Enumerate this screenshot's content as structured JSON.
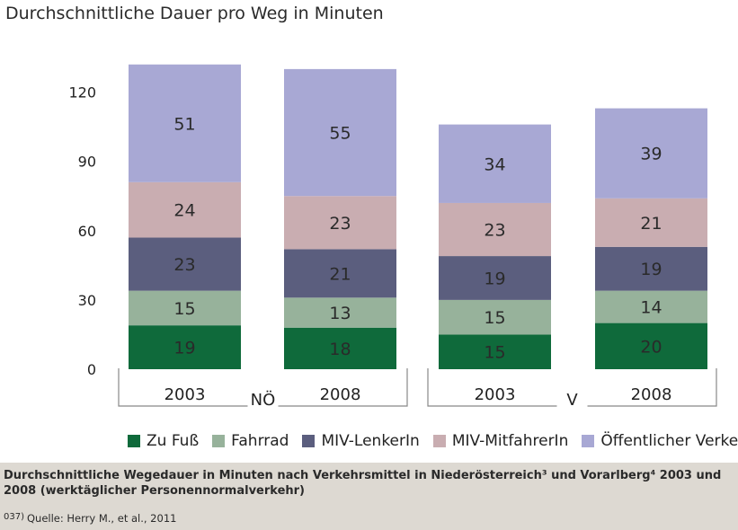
{
  "title": "Durchschnittliche Dauer pro Weg in Minuten",
  "colors": {
    "zu_fuss": "#0f6a3b",
    "fahrrad": "#97b29b",
    "miv_lenker": "#5b5e7e",
    "miv_mitfahrer": "#c9adb1",
    "oeffentlich": "#a8a8d4",
    "axis": "#888888"
  },
  "chart_data": {
    "type": "bar",
    "stacked": true,
    "title": "Durchschnittliche Dauer pro Weg in Minuten",
    "categories": [
      "2003",
      "2008",
      "2003",
      "2008"
    ],
    "groups": [
      {
        "label": "NÖ",
        "categories": [
          "2003",
          "2008"
        ]
      },
      {
        "label": "V",
        "categories": [
          "2003",
          "2008"
        ]
      }
    ],
    "series": [
      {
        "name": "Zu Fuß",
        "values": [
          19,
          18,
          15,
          20
        ],
        "labels": [
          "19",
          "18",
          "15",
          "20"
        ]
      },
      {
        "name": "Fahrrad",
        "values": [
          15,
          13,
          15,
          14
        ],
        "labels": [
          "15",
          "13",
          "15",
          "14"
        ]
      },
      {
        "name": "MIV-LenkerIn",
        "values": [
          23,
          21,
          19,
          19
        ],
        "labels": [
          "23",
          "21",
          "19",
          "19"
        ]
      },
      {
        "name": "MIV-MitfahrerIn",
        "values": [
          24,
          23,
          23,
          21
        ],
        "labels": [
          "24",
          "23",
          "23",
          "21"
        ]
      },
      {
        "name": "Öffentlicher Verkehr",
        "values": [
          51,
          55,
          34,
          39
        ],
        "labels": [
          "51",
          "55",
          "34",
          "39"
        ]
      }
    ],
    "yticks": [
      0,
      30,
      60,
      90,
      120
    ],
    "ytick_labels": [
      "0",
      "30",
      "60",
      "90",
      "120"
    ],
    "ylim": [
      0,
      140
    ],
    "legend_position": "bottom",
    "grid": false
  },
  "legend": [
    {
      "label": "Zu Fuß",
      "color": "#0f6a3b"
    },
    {
      "label": "Fahrrad",
      "color": "#97b29b"
    },
    {
      "label": "MIV-LenkerIn",
      "color": "#5b5e7e"
    },
    {
      "label": "MIV-MitfahrerIn",
      "color": "#c9adb1"
    },
    {
      "label": "Öffentlicher Verkehr",
      "color": "#a8a8d4"
    }
  ],
  "caption": {
    "text": "Durchschnittliche Wegedauer in Minuten nach Verkehrsmittel in Niederösterreich³ und Vorarlberg⁴ 2003 und 2008 (werktäglicher Personennormalverkehr)",
    "source_number": "037)",
    "source_text": "Quelle: Herry M., et al., 2011"
  }
}
